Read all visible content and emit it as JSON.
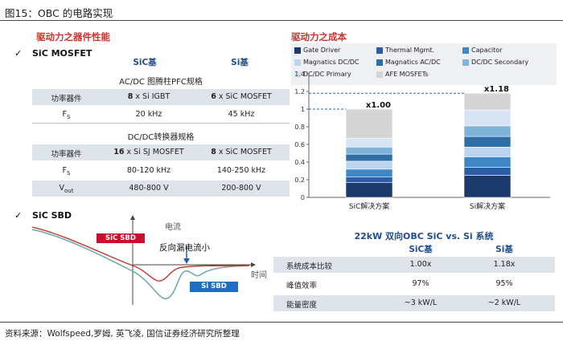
{
  "figure_title": "图15：OBC 的电路实现",
  "left_section_title": "驱动力之器件性能",
  "right_section_title": "驱动力之成本",
  "mosfet": {
    "check": "✓",
    "label": "SiC MOSFET",
    "col_sic": "SiC基",
    "col_si": "Si基",
    "pfc_title": "AC/DC 图腾柱PFC规格",
    "pfc_rows": [
      {
        "label": "功率器件",
        "si": "8 x Si IGBT",
        "si_bold": "8",
        "sic": "6 x SiC MOSFET",
        "sic_bold": "6"
      },
      {
        "label": "Fs",
        "si": "20 kHz",
        "sic": "45 kHz"
      }
    ],
    "dcdc_title": "DC/DC转换器规格",
    "dcdc_rows": [
      {
        "label": "功率器件",
        "si": "16 x Si SJ MOSFET",
        "sic": "8 x SiC MOSFET"
      },
      {
        "label": "Fs",
        "si": "80-120 kHz",
        "sic": "140-250 kHz"
      },
      {
        "label": "Vout",
        "si": "480-800 V",
        "sic": "200-800 V"
      }
    ]
  },
  "sbd": {
    "check": "✓",
    "label": "SiC SBD",
    "y_axis": "电流",
    "x_axis": "时间",
    "sic_tag": "SiC SBD",
    "si_tag": "Si SBD",
    "annotation": "反向漏电流小"
  },
  "legend": [
    {
      "name": "Gate Driver",
      "color": "#1b3a6b"
    },
    {
      "name": "Thermal Mgmt.",
      "color": "#2a5ea8"
    },
    {
      "name": "Capacitor",
      "color": "#3f86c6"
    },
    {
      "name": "Magnatics DC/DC",
      "color": "#bcd4ee"
    },
    {
      "name": "Magnatics AC/DC",
      "color": "#2f6fa8"
    },
    {
      "name": "DC/DC Secondary",
      "color": "#7fb3d8"
    },
    {
      "name": "DC/DC Primary",
      "color": "#d6e4f3"
    },
    {
      "name": "AFE MOSFETs",
      "color": "#d5d5d5"
    }
  ],
  "chart_data": {
    "type": "bar",
    "stacked": true,
    "categories": [
      "SiC解决方案",
      "Si解决方案"
    ],
    "ylim": [
      0,
      1.4
    ],
    "yticks": [
      "0",
      "0.2",
      "0.4",
      "0.6",
      "0.8",
      "1",
      "1.2",
      "1.4"
    ],
    "totals": [
      "x1.00",
      "x1.18"
    ],
    "series": [
      {
        "name": "Gate Driver",
        "values": [
          0.17,
          0.25
        ]
      },
      {
        "name": "Thermal Mgmt.",
        "values": [
          0.06,
          0.09
        ]
      },
      {
        "name": "Capacitor",
        "values": [
          0.09,
          0.12
        ]
      },
      {
        "name": "Magnatics DC/DC",
        "values": [
          0.09,
          0.11
        ]
      },
      {
        "name": "Magnatics AC/DC",
        "values": [
          0.08,
          0.12
        ]
      },
      {
        "name": "DC/DC Secondary",
        "values": [
          0.08,
          0.12
        ]
      },
      {
        "name": "DC/DC Primary",
        "values": [
          0.1,
          0.18
        ]
      },
      {
        "name": "AFE MOSFETs",
        "values": [
          0.33,
          0.19
        ]
      }
    ]
  },
  "system": {
    "title": "22kW 双向OBC SiC vs. Si 系统",
    "col_sic": "SiC基",
    "col_si": "Si基",
    "rows": [
      {
        "label": "系统成本比较",
        "sic": "1.00x",
        "si": "1.18x"
      },
      {
        "label": "峰值效率",
        "sic": "97%",
        "si": "95%"
      },
      {
        "label": "能量密度",
        "sic": "~3 kW/L",
        "si": "~2 kW/L"
      }
    ]
  },
  "source": "资料来源：Wolfspeed,罗姆, 英飞凌, 国信证券经济研究所整理"
}
